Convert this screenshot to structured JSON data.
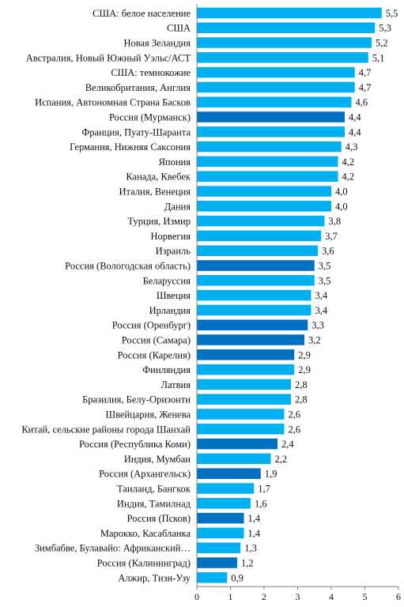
{
  "chart_data": {
    "type": "bar",
    "orientation": "horizontal",
    "categories": [
      "США: белое население",
      "США",
      "Новая Зеландия",
      "Австралия, Новый Южный Уэльс/АСТ",
      "США: темнокожие",
      "Великобритания, Англия",
      "Испания, Автономная Страна Басков",
      "Россия (Мурманск)",
      "Франция, Пуату-Шаранта",
      "Германия, Нижняя Саксония",
      "Япония",
      "Канада, Квебек",
      "Италия, Венеция",
      "Дания",
      "Турция, Измир",
      "Норвегия",
      "Израиль",
      "Россия (Вологодская область)",
      "Беларуссия",
      "Швеция",
      "Ирландия",
      "Россия (Оренбург)",
      "Россия (Самара)",
      "Россия (Карелия)",
      "Финляндия",
      "Латвия",
      "Бразилия, Белу-Оризонти",
      "Швейцария, Женева",
      "Китай, сельские районы города Шанхай",
      "Россия (Республика Коми)",
      "Индия, Мумбаи",
      "Россия (Архангельск)",
      "Таиланд, Бангкок",
      "Индия, Тамилнад",
      "Россия (Псков)",
      "Марокко, Касабланка",
      "Зимбабве, Булавайо: Африканский…",
      "Россия (Калининград)",
      "Алжир, Тизи-Узу"
    ],
    "values": [
      5.5,
      5.3,
      5.2,
      5.1,
      4.7,
      4.7,
      4.6,
      4.4,
      4.4,
      4.3,
      4.2,
      4.2,
      4.0,
      4.0,
      3.8,
      3.7,
      3.6,
      3.5,
      3.5,
      3.4,
      3.4,
      3.3,
      3.2,
      2.9,
      2.9,
      2.8,
      2.8,
      2.6,
      2.6,
      2.4,
      2.2,
      1.9,
      1.7,
      1.6,
      1.4,
      1.4,
      1.3,
      1.2,
      0.9
    ],
    "value_labels": [
      "5,5",
      "5,3",
      "5,2",
      "5,1",
      "4,7",
      "4,7",
      "4,6",
      "4,4",
      "4,4",
      "4,3",
      "4,2",
      "4,2",
      "4,0",
      "4,0",
      "3,8",
      "3,7",
      "3,6",
      "3,5",
      "3,5",
      "3,4",
      "3,4",
      "3,3",
      "3,2",
      "2,9",
      "2,9",
      "2,8",
      "2,8",
      "2,6",
      "2,6",
      "2,4",
      "2,2",
      "1,9",
      "1,7",
      "1,6",
      "1,4",
      "1,4",
      "1,3",
      "1,2",
      "0,9"
    ],
    "highlighted": [
      false,
      false,
      false,
      false,
      false,
      false,
      false,
      true,
      false,
      false,
      false,
      false,
      false,
      false,
      false,
      false,
      false,
      true,
      false,
      false,
      false,
      true,
      true,
      true,
      false,
      false,
      false,
      false,
      false,
      true,
      false,
      true,
      false,
      false,
      true,
      false,
      false,
      true,
      false
    ],
    "colors": {
      "default": "#00b0f0",
      "highlight": "#0070c0"
    },
    "xticks": [
      "0",
      "1",
      "2",
      "3",
      "4",
      "5",
      "6"
    ],
    "xlim": [
      0,
      6
    ],
    "title": "",
    "xlabel": "",
    "ylabel": "",
    "grid": false,
    "legend": "none"
  }
}
